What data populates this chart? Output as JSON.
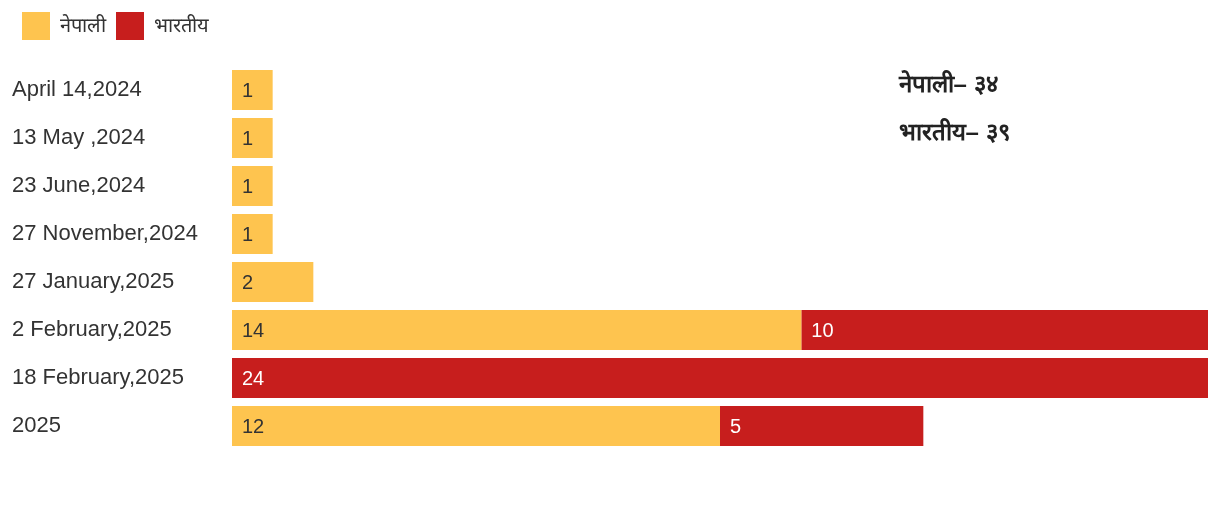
{
  "chart_data": {
    "type": "bar",
    "orientation": "horizontal",
    "stacked": true,
    "categories": [
      "April 14,2024",
      "13 May ,2024",
      "23 June,2024",
      "27 November,2024",
      "27 January,2025",
      "2 February,2025",
      "18 February,2025",
      "2025"
    ],
    "series": [
      {
        "name": "नेपाली",
        "color": "#fec44f",
        "values": [
          1,
          1,
          1,
          1,
          2,
          14,
          null,
          12
        ]
      },
      {
        "name": "भारतीय",
        "color": "#c71e1d",
        "values": [
          null,
          null,
          null,
          null,
          null,
          10,
          24,
          5
        ]
      }
    ],
    "data_labels": true,
    "legend": "top left",
    "annotations": [
      "नेपाली– ३४",
      "भारतीय– ३९"
    ]
  }
}
